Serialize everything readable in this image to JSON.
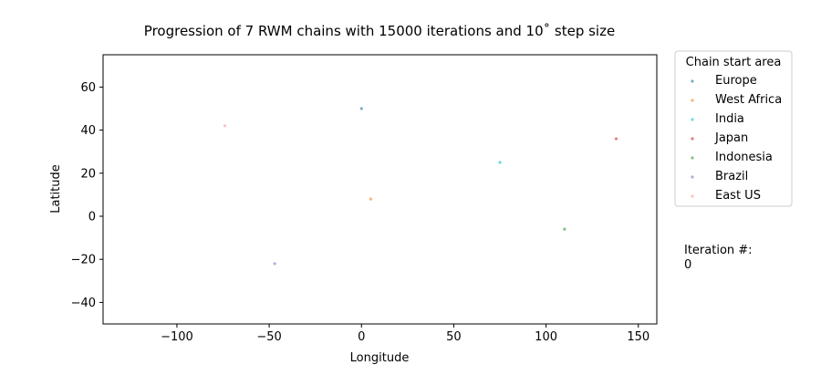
{
  "chart_data": {
    "type": "scatter",
    "title": "Progression of 7 RWM chains with 15000 iterations and 10˚ step size",
    "xlabel": "Longitude",
    "ylabel": "Latitude",
    "xlim": [
      -140,
      160
    ],
    "ylim": [
      -50,
      75
    ],
    "xticks": [
      -100,
      -50,
      0,
      50,
      100,
      150
    ],
    "yticks": [
      -40,
      -20,
      0,
      20,
      40,
      60
    ],
    "xtick_labels": [
      "−100",
      "−50",
      "0",
      "50",
      "100",
      "150"
    ],
    "ytick_labels": [
      "−40",
      "−20",
      "0",
      "20",
      "40",
      "60"
    ],
    "grid": false,
    "legend": {
      "title": "Chain start area",
      "placement": "outside-right"
    },
    "series": [
      {
        "name": "Europe",
        "color": "#1f77b4",
        "x": [
          0
        ],
        "y": [
          50
        ]
      },
      {
        "name": "West Africa",
        "color": "#ff7f0e",
        "x": [
          5
        ],
        "y": [
          8
        ]
      },
      {
        "name": "India",
        "color": "#17becf",
        "x": [
          75
        ],
        "y": [
          25
        ]
      },
      {
        "name": "Japan",
        "color": "#d62728",
        "x": [
          138
        ],
        "y": [
          36
        ]
      },
      {
        "name": "Indonesia",
        "color": "#2ca02c",
        "x": [
          110
        ],
        "y": [
          -6
        ]
      },
      {
        "name": "Brazil",
        "color": "#9467bd",
        "x": [
          -47
        ],
        "y": [
          -22
        ]
      },
      {
        "name": "East US",
        "color": "#ff9896",
        "x": [
          -74
        ],
        "y": [
          42
        ]
      }
    ]
  },
  "annotation": {
    "label": "Iteration #:",
    "value": "0"
  }
}
